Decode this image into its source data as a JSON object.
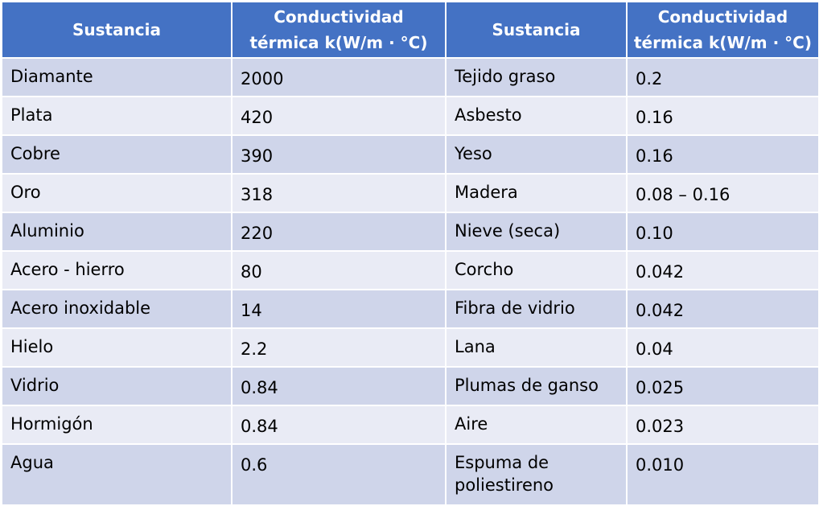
{
  "headers": {
    "substance_left": "Sustancia",
    "conductivity_left": "Conductividad térmica k(W/m · °C)",
    "substance_right": "Sustancia",
    "conductivity_right": "Conductividad térmica k(W/m · °C)"
  },
  "rows": [
    {
      "substance_left": "Diamante",
      "k_left": "2000",
      "substance_right": "Tejido graso",
      "k_right": "0.2"
    },
    {
      "substance_left": "Plata",
      "k_left": "420",
      "substance_right": "Asbesto",
      "k_right": "0.16"
    },
    {
      "substance_left": "Cobre",
      "k_left": "390",
      "substance_right": "Yeso",
      "k_right": "0.16"
    },
    {
      "substance_left": "Oro",
      "k_left": "318",
      "substance_right": "Madera",
      "k_right": "0.08 – 0.16"
    },
    {
      "substance_left": "Aluminio",
      "k_left": "220",
      "substance_right": "Nieve (seca)",
      "k_right": "0.10"
    },
    {
      "substance_left": "Acero - hierro",
      "k_left": "80",
      "substance_right": "Corcho",
      "k_right": "0.042"
    },
    {
      "substance_left": "Acero inoxidable",
      "k_left": "14",
      "substance_right": "Fibra de vidrio",
      "k_right": "0.042"
    },
    {
      "substance_left": "Hielo",
      "k_left": "2.2",
      "substance_right": "Lana",
      "k_right": "0.04"
    },
    {
      "substance_left": "Vidrio",
      "k_left": "0.84",
      "substance_right": "Plumas de ganso",
      "k_right": "0.025"
    },
    {
      "substance_left": "Hormigón",
      "k_left": "0.84",
      "substance_right": "Aire",
      "k_right": "0.023"
    },
    {
      "substance_left": "Agua",
      "k_left": "0.6",
      "substance_right": "Espuma de poliestireno",
      "k_right": "0.010"
    }
  ],
  "colors": {
    "header_bg": "#4472c4",
    "row_odd_bg": "#cfd5ea",
    "row_even_bg": "#e9ebf5"
  }
}
